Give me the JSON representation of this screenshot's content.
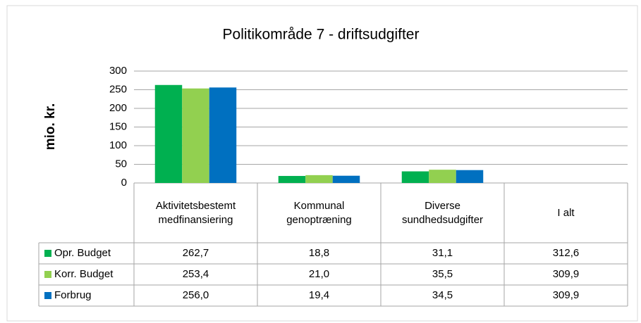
{
  "chart_data": {
    "type": "bar",
    "title": "Politikområde 7 - driftsudgifter",
    "y_axis_label": "mio. kr.",
    "categories": [
      "Aktivitetsbestemt medfinansiering",
      "Kommunal genoptræning",
      "Diverse sundhedsudgifter",
      "I alt"
    ],
    "series": [
      {
        "name": "Opr. Budget",
        "color": "#00b050",
        "values": [
          262.7,
          18.8,
          31.1,
          312.6
        ],
        "value_labels": [
          "262,7",
          "18,8",
          "31,1",
          "312,6"
        ]
      },
      {
        "name": "Korr. Budget",
        "color": "#92d050",
        "values": [
          253.4,
          21.0,
          35.5,
          309.9
        ],
        "value_labels": [
          "253,4",
          "21,0",
          "35,5",
          "309,9"
        ]
      },
      {
        "name": "Forbrug",
        "color": "#0070c0",
        "values": [
          256.0,
          19.4,
          34.5,
          309.9
        ],
        "value_labels": [
          "256,0",
          "19,4",
          "34,5",
          "309,9"
        ]
      }
    ],
    "ylim": [
      0,
      300
    ],
    "yticks": [
      0,
      50,
      100,
      150,
      200,
      250,
      300
    ],
    "grid": true,
    "data_table": true
  }
}
